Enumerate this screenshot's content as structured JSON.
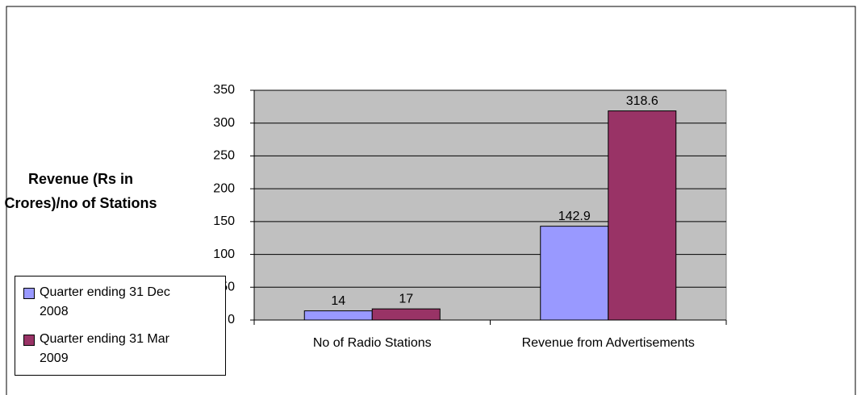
{
  "chart_data": {
    "type": "bar",
    "y_label": "Revenue (Rs in Crores)/no of Stations",
    "categories": [
      "No of Radio Stations",
      "Revenue from Advertisements"
    ],
    "series": [
      {
        "name": "Quarter ending 31 Dec 2008",
        "color": "#9999ff",
        "values": [
          14,
          142.9
        ]
      },
      {
        "name": "Quarter ending 31 Mar 2009",
        "color": "#993366",
        "values": [
          17,
          318.6
        ]
      }
    ],
    "ylim": [
      0,
      350
    ],
    "yticks": [
      0,
      50,
      100,
      150,
      200,
      250,
      300,
      350
    ],
    "grid": true,
    "legend": "left"
  }
}
